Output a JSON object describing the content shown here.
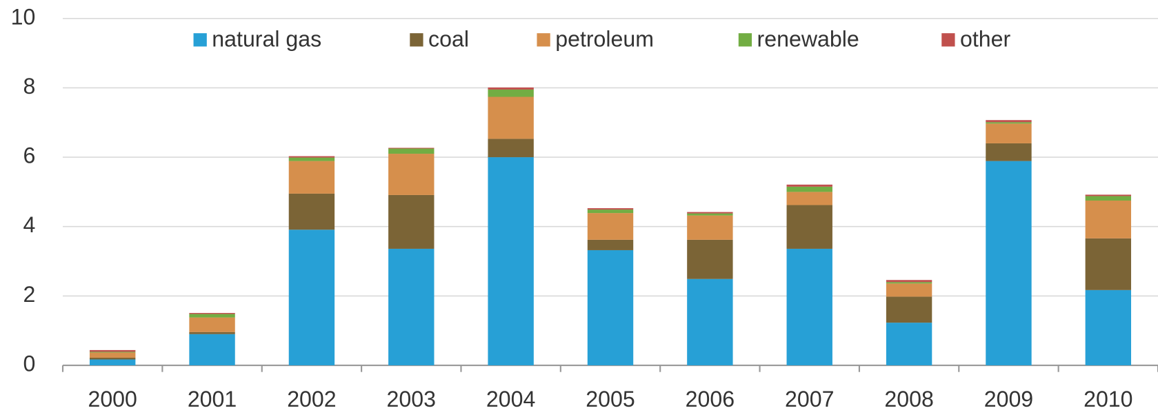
{
  "chart_data": {
    "type": "stacked_bar",
    "categories": [
      "2000",
      "2001",
      "2002",
      "2003",
      "2004",
      "2005",
      "2006",
      "2007",
      "2008",
      "2009",
      "2010"
    ],
    "series": [
      {
        "name": "natural gas",
        "color": "#27a0d6",
        "values": [
          0.17,
          0.9,
          3.91,
          3.36,
          6.0,
          3.32,
          2.49,
          3.36,
          1.23,
          5.89,
          2.17
        ]
      },
      {
        "name": "coal",
        "color": "#7b6436",
        "values": [
          0.05,
          0.06,
          1.04,
          1.55,
          0.53,
          0.3,
          1.13,
          1.26,
          0.75,
          0.51,
          1.49
        ]
      },
      {
        "name": "petroleum",
        "color": "#d68f4c",
        "values": [
          0.15,
          0.42,
          0.94,
          1.19,
          1.21,
          0.77,
          0.7,
          0.38,
          0.38,
          0.57,
          1.09
        ]
      },
      {
        "name": "renewable",
        "color": "#72ad43",
        "values": [
          0.02,
          0.1,
          0.1,
          0.15,
          0.21,
          0.1,
          0.06,
          0.15,
          0.04,
          0.04,
          0.13
        ]
      },
      {
        "name": "other",
        "color": "#c0504d",
        "values": [
          0.05,
          0.03,
          0.04,
          0.02,
          0.06,
          0.04,
          0.04,
          0.06,
          0.06,
          0.06,
          0.04
        ]
      }
    ],
    "ylim": [
      0,
      10
    ],
    "yticks": [
      0,
      2,
      4,
      6,
      8,
      10
    ],
    "grid": true,
    "legend": "top"
  }
}
